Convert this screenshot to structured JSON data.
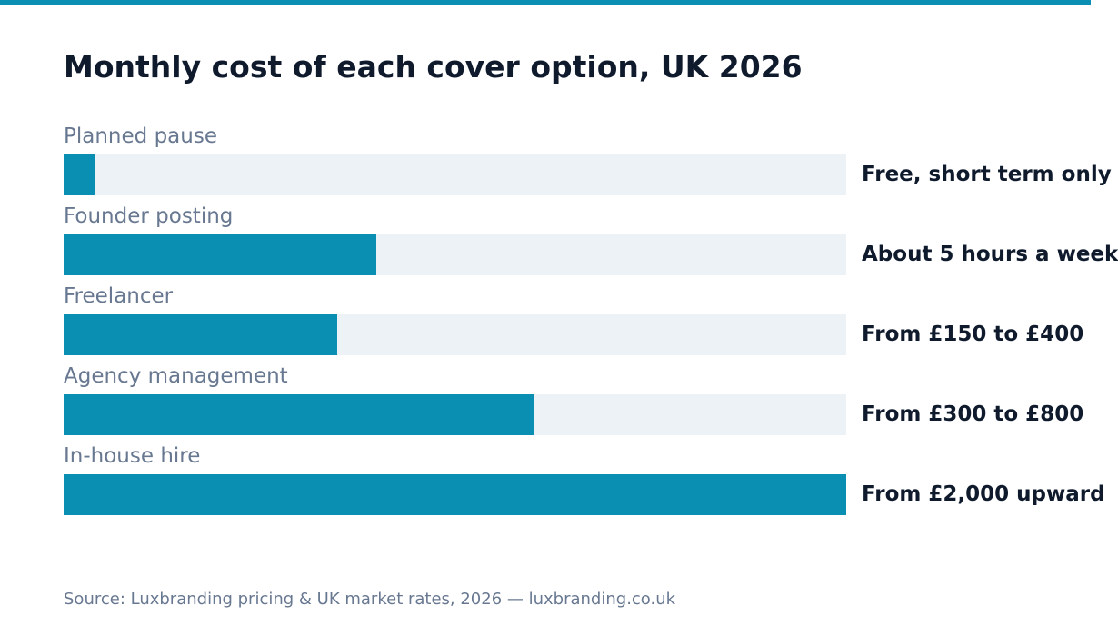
{
  "chart_data": {
    "type": "bar",
    "orientation": "horizontal",
    "title": "Monthly cost of each cover option, UK 2026",
    "categories": [
      "Planned pause",
      "Founder posting",
      "Freelancer",
      "Agency management",
      "In-house hire"
    ],
    "values": [
      4,
      40,
      35,
      60,
      100
    ],
    "xlim": [
      0,
      100
    ],
    "value_labels": [
      "Free, short term only",
      "About 5 hours a week",
      "From £150 to £400",
      "From £300 to £800",
      "From £2,000 upward"
    ],
    "source": "Source: Luxbranding pricing & UK market rates, 2026 — luxbranding.co.uk",
    "grid": false,
    "legend": "none"
  },
  "colors": {
    "accent": "#0a8fb2",
    "track": "#edf2f7",
    "title_text": "#0f1b2d",
    "muted_text": "#687891"
  }
}
